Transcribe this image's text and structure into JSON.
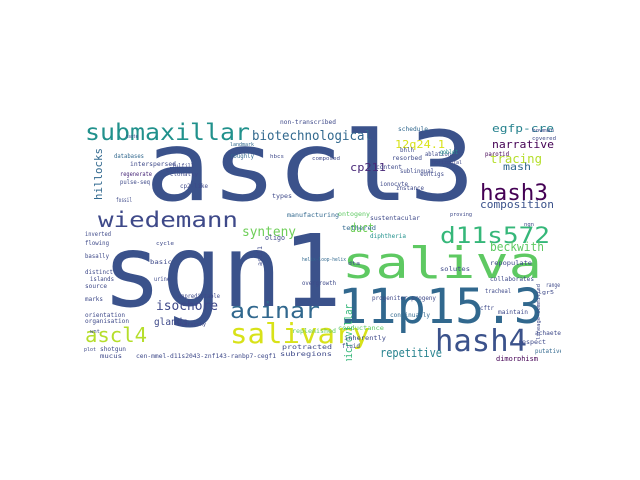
{
  "words": [
    {
      "text": "ascl3",
      "color": "#3b528b"
    },
    {
      "text": "sgn1",
      "color": "#3b528b"
    },
    {
      "text": "saliva",
      "color": "#5ec962"
    },
    {
      "text": "11p15.3",
      "color": "#31688e"
    },
    {
      "text": "salivary",
      "color": "#d8e219"
    },
    {
      "text": "hash4",
      "color": "#3b528b"
    },
    {
      "text": "hash3",
      "color": "#440154"
    },
    {
      "text": "d11s572",
      "color": "#35b779"
    },
    {
      "text": "wiedemann",
      "color": "#3e4989"
    },
    {
      "text": "submaxillar",
      "color": "#21918c"
    },
    {
      "text": "acinar",
      "color": "#31688e"
    },
    {
      "text": "ascl4",
      "color": "#b5de2b"
    },
    {
      "text": "biotechnological",
      "color": "#31688e"
    },
    {
      "text": "isochore",
      "color": "#3e4989"
    },
    {
      "text": "repetitive",
      "color": "#26828e"
    },
    {
      "text": "synteny",
      "color": "#6ece58"
    },
    {
      "text": "narrative",
      "color": "#440154"
    },
    {
      "text": "tracing",
      "color": "#b5de2b"
    },
    {
      "text": "composition",
      "color": "#3b528b"
    },
    {
      "text": "egfp-cre",
      "color": "#26828e"
    },
    {
      "text": "beckwith",
      "color": "#5ec962"
    },
    {
      "text": "microvillar",
      "color": "#35b779"
    },
    {
      "text": "hillocks",
      "color": "#31688e"
    },
    {
      "text": "12q24.1",
      "color": "#d8e219"
    },
    {
      "text": "cp211",
      "color": "#482878"
    },
    {
      "text": "glands",
      "color": "#3e4989"
    },
    {
      "text": "mash",
      "color": "#31688e"
    },
    {
      "text": "duct",
      "color": "#6ece58"
    },
    {
      "text": "non-transcribed",
      "color": "#3e4989"
    },
    {
      "text": "databases",
      "color": "#31688e"
    },
    {
      "text": "interspersed",
      "color": "#3e4989"
    },
    {
      "text": "pulse-seq",
      "color": "#3e4989"
    },
    {
      "text": "regenerate",
      "color": "#482878"
    },
    {
      "text": "clonally",
      "color": "#3e4989"
    },
    {
      "text": "fulfill",
      "color": "#3e4989"
    },
    {
      "text": "cp2-like",
      "color": "#3e4989"
    },
    {
      "text": "roughly",
      "color": "#31688e"
    },
    {
      "text": "landmark",
      "color": "#31688e"
    },
    {
      "text": "sublingual",
      "color": "#3e4989"
    },
    {
      "text": "bhlh",
      "color": "#3e4989"
    },
    {
      "text": "ablation",
      "color": "#3e4989"
    },
    {
      "text": "schedule",
      "color": "#31688e"
    },
    {
      "text": "resorbed",
      "color": "#3e4989"
    },
    {
      "text": "parotid",
      "color": "#440154"
    },
    {
      "text": "contigs",
      "color": "#3e4989"
    },
    {
      "text": "ionocyte",
      "color": "#3e4989"
    },
    {
      "text": "goblet",
      "color": "#21918c"
    },
    {
      "text": "types",
      "color": "#3e4989"
    },
    {
      "text": "manufacturing",
      "color": "#31688e"
    },
    {
      "text": "sustentacular",
      "color": "#3e4989"
    },
    {
      "text": "helix-loop-helix",
      "color": "#31688e"
    },
    {
      "text": "progenitor-progeny",
      "color": "#3e4989"
    },
    {
      "text": "collaborates",
      "color": "#3e4989"
    },
    {
      "text": "repopulate",
      "color": "#3e4989"
    },
    {
      "text": "solutes",
      "color": "#3e4989"
    },
    {
      "text": "continually",
      "color": "#31688e"
    },
    {
      "text": "basally",
      "color": "#3e4989"
    },
    {
      "text": "distinct",
      "color": "#3e4989"
    },
    {
      "text": "flowing",
      "color": "#3e4989"
    },
    {
      "text": "islands",
      "color": "#3e4989"
    },
    {
      "text": "source",
      "color": "#3e4989"
    },
    {
      "text": "marks",
      "color": "#3e4989"
    },
    {
      "text": "orientation",
      "color": "#3e4989"
    },
    {
      "text": "organisation",
      "color": "#3e4989"
    },
    {
      "text": "shotgun",
      "color": "#3e4989"
    },
    {
      "text": "mucus",
      "color": "#3e4989"
    },
    {
      "text": "inverted",
      "color": "#3e4989"
    },
    {
      "text": "cen-mmel-d11s2043-znf143-ranbp7-cegf1",
      "color": "#3e4989"
    },
    {
      "text": "subregions",
      "color": "#3e4989"
    },
    {
      "text": "protracted",
      "color": "#3e4989"
    },
    {
      "text": "inherently",
      "color": "#3e4989"
    },
    {
      "text": "dimorphism",
      "color": "#440154"
    },
    {
      "text": "putative",
      "color": "#31688e"
    },
    {
      "text": "maintain",
      "color": "#3e4989"
    },
    {
      "text": "tracheal",
      "color": "#3e4989"
    },
    {
      "text": "lineage-committed",
      "color": "#3e4989"
    },
    {
      "text": "oligo",
      "color": "#3e4989"
    },
    {
      "text": "cftr",
      "color": "#3e4989"
    },
    {
      "text": "basic",
      "color": "#3e4989"
    },
    {
      "text": "unpredictable",
      "color": "#3e4989"
    },
    {
      "text": "replenished",
      "color": "#5ec962"
    },
    {
      "text": "fluid",
      "color": "#3e4989"
    },
    {
      "text": "tethered",
      "color": "#31688e"
    },
    {
      "text": "diphtheria",
      "color": "#21918c"
    },
    {
      "text": "respect",
      "color": "#3e4989"
    },
    {
      "text": "ontogeny",
      "color": "#5ec962"
    },
    {
      "text": "content",
      "color": "#3e4989"
    },
    {
      "text": "instance",
      "color": "#3e4989"
    },
    {
      "text": "covered",
      "color": "#3e4989"
    },
    {
      "text": "bowman",
      "color": "#3e4989"
    },
    {
      "text": "proving",
      "color": "#3e4989"
    },
    {
      "text": "achaete",
      "color": "#3e4989"
    },
    {
      "text": "range",
      "color": "#3e4989"
    },
    {
      "text": "conductance",
      "color": "#5ec962"
    },
    {
      "text": "overgrowth",
      "color": "#3e4989"
    },
    {
      "text": "hierarchy",
      "color": "#3e4989"
    },
    {
      "text": "urine",
      "color": "#3e4989"
    },
    {
      "text": "sons",
      "color": "#3e4989"
    },
    {
      "text": "lgr5",
      "color": "#3e4989"
    },
    {
      "text": "ascl1",
      "color": "#3e4989"
    },
    {
      "text": "cycle",
      "color": "#3e4989"
    },
    {
      "text": "fossil",
      "color": "#3e4989"
    },
    {
      "text": "club",
      "color": "#3e4989"
    },
    {
      "text": "hbcs",
      "color": "#3e4989"
    },
    {
      "text": "composed",
      "color": "#3e4989"
    },
    {
      "text": "horizontal",
      "color": "#3e4989"
    },
    {
      "text": "dta",
      "color": "#3e4989"
    },
    {
      "text": "plot",
      "color": "#3e4989"
    },
    {
      "text": "taste",
      "color": "#3e4989"
    },
    {
      "text": "ngn",
      "color": "#3e4989"
    },
    {
      "text": "wnt",
      "color": "#3e4989"
    }
  ]
}
